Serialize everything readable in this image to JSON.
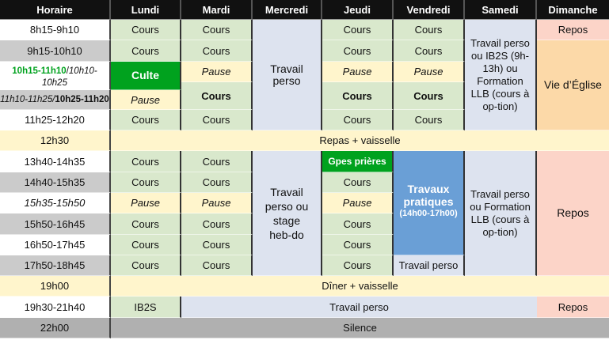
{
  "headers": [
    "Horaire",
    "Lundi",
    "Mardi",
    "Mercredi",
    "Jeudi",
    "Vendredi",
    "Samedi",
    "Dimanche"
  ],
  "times": {
    "t0": "8h15-9h10",
    "t1": "9h15-10h10",
    "t2_a": "10h15-11h10",
    "t2_sep": "/",
    "t2_b": "10h10-10h25",
    "t3_a": "11h10-11h25/",
    "t3_b": "10h25-11h20",
    "t4": "11h25-12h20",
    "t5": "12h30",
    "t6": "13h40-14h35",
    "t7": "14h40-15h35",
    "t8": "15h35-15h50",
    "t9": "15h50-16h45",
    "t10": "16h50-17h45",
    "t11": "17h50-18h45",
    "t12": "19h00",
    "t13": "19h30-21h40",
    "t14": "22h00"
  },
  "labels": {
    "cours": "Cours",
    "pause": "Pause",
    "culte": "Culte",
    "repos": "Repos",
    "vie_eglise": "Vie d’Église",
    "repas": "Repas + vaisselle",
    "diner": "Dîner + vaisselle",
    "ib2s": "IB2S",
    "travail_perso": "Travail perso",
    "silence": "Silence",
    "mercredi_matin": "Travail perso",
    "mercredi_aprem": "Travail perso ou stage heb-do",
    "samedi_matin": "Travail perso ou IB2S (9h-13h) ou Formation LLB (cours à op-tion)",
    "samedi_aprem": "Travail perso ou Formation LLB (cours à op-tion)",
    "gpes_prieres": "Gpes prières",
    "travaux_pratiques": "Travaux pratiques",
    "travaux_horaire": "(14h00-17h00)"
  },
  "colors": {
    "header": "#111111",
    "cours": "#d9e8cc",
    "pause": "#fff5cc",
    "travail": "#dde3ef",
    "repos": "#fcd4c8",
    "eglise": "#fcd9a8",
    "culte": "#00a21e",
    "travaux": "#6a9fd6",
    "silence": "#b0b0b0"
  }
}
